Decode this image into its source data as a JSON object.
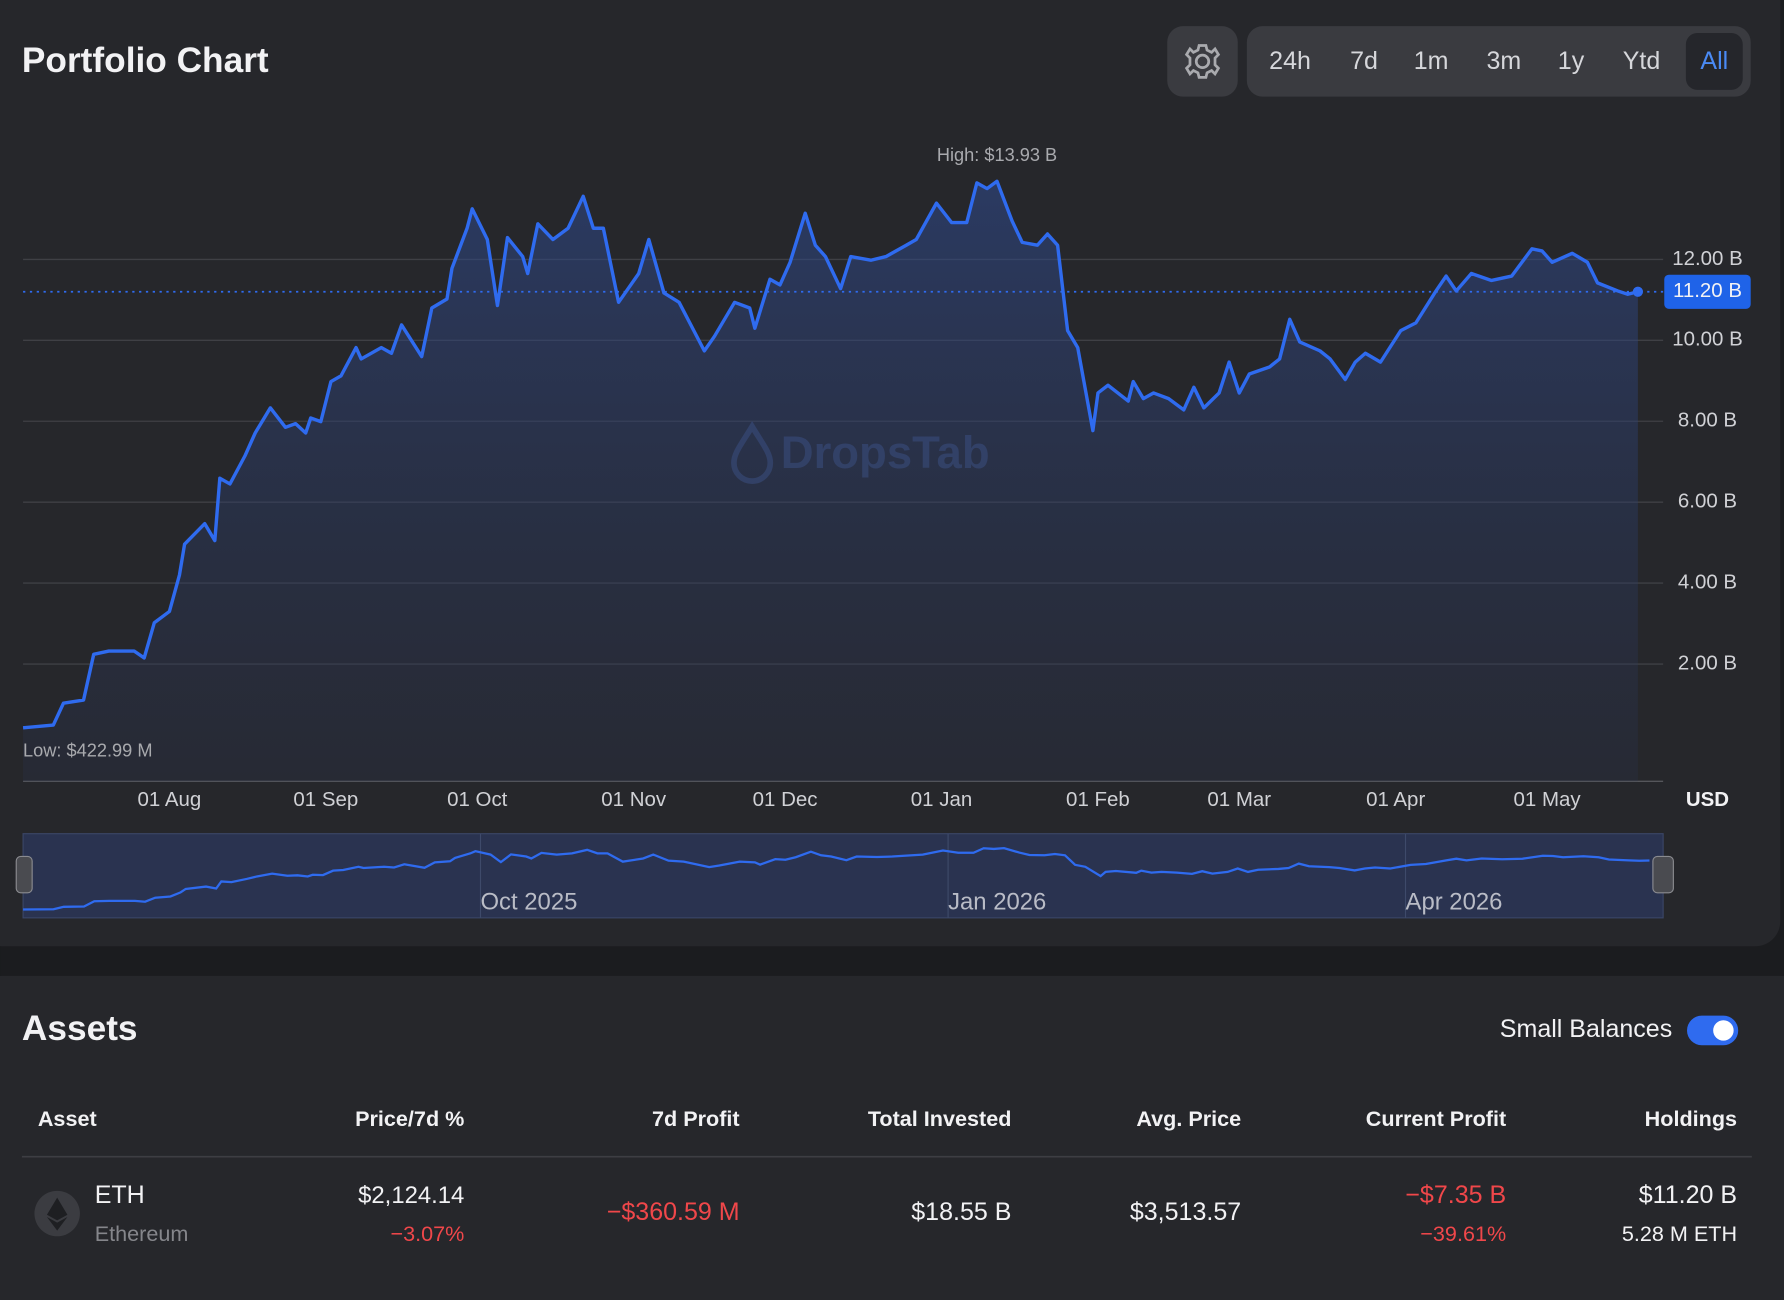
{
  "header": {
    "title": "Portfolio Chart",
    "ranges": [
      "24h",
      "7d",
      "1m",
      "3m",
      "1y",
      "Ytd",
      "All"
    ],
    "active_range": "All"
  },
  "chart_data": {
    "type": "line",
    "color": "#2f6bef",
    "grid": true,
    "watermark": "DropsTab",
    "currency_label": "USD",
    "annotations": [
      {
        "text": "High: $13.93 B",
        "at": "max"
      },
      {
        "text": "Low: $422.99 M",
        "at": "min"
      }
    ],
    "x": [
      "2025-07-03",
      "2025-07-09",
      "2025-07-11",
      "2025-07-15",
      "2025-07-17",
      "2025-07-20",
      "2025-07-25",
      "2025-07-27",
      "2025-07-29",
      "2025-08-01",
      "2025-08-03",
      "2025-08-04",
      "2025-08-08",
      "2025-08-10",
      "2025-08-11",
      "2025-08-13",
      "2025-08-16",
      "2025-08-18",
      "2025-08-21",
      "2025-08-24",
      "2025-08-26",
      "2025-08-28",
      "2025-08-29",
      "2025-08-31",
      "2025-09-02",
      "2025-09-04",
      "2025-09-07",
      "2025-09-08",
      "2025-09-12",
      "2025-09-14",
      "2025-09-16",
      "2025-09-20",
      "2025-09-22",
      "2025-09-25",
      "2025-09-26",
      "2025-09-29",
      "2025-09-30",
      "2025-10-03",
      "2025-10-05",
      "2025-10-07",
      "2025-10-10",
      "2025-10-11",
      "2025-10-13",
      "2025-10-16",
      "2025-10-19",
      "2025-10-22",
      "2025-10-24",
      "2025-10-26",
      "2025-10-29",
      "2025-11-02",
      "2025-11-04",
      "2025-11-07",
      "2025-11-10",
      "2025-11-15",
      "2025-11-17",
      "2025-11-21",
      "2025-11-24",
      "2025-11-25",
      "2025-11-28",
      "2025-11-30",
      "2025-12-02",
      "2025-12-05",
      "2025-12-07",
      "2025-12-09",
      "2025-12-12",
      "2025-12-14",
      "2025-12-18",
      "2025-12-21",
      "2025-12-25",
      "2025-12-27",
      "2025-12-31",
      "2026-01-03",
      "2026-01-06",
      "2026-01-08",
      "2026-01-10",
      "2026-01-12",
      "2026-01-15",
      "2026-01-17",
      "2026-01-20",
      "2026-01-22",
      "2026-01-24",
      "2026-01-26",
      "2026-01-28",
      "2026-01-31",
      "2026-02-01",
      "2026-02-03",
      "2026-02-07",
      "2026-02-08",
      "2026-02-10",
      "2026-02-12",
      "2026-02-15",
      "2026-02-18",
      "2026-02-20",
      "2026-02-22",
      "2026-02-25",
      "2026-02-27",
      "2026-03-01",
      "2026-03-03",
      "2026-03-07",
      "2026-03-09",
      "2026-03-11",
      "2026-03-13",
      "2026-03-17",
      "2026-03-19",
      "2026-03-22",
      "2026-03-24",
      "2026-03-26",
      "2026-03-29",
      "2026-04-02",
      "2026-04-05",
      "2026-04-09",
      "2026-04-11",
      "2026-04-13",
      "2026-04-16",
      "2026-04-20",
      "2026-04-24",
      "2026-04-28",
      "2026-04-30",
      "2026-05-02",
      "2026-05-06",
      "2026-05-09",
      "2026-05-11",
      "2026-05-15",
      "2026-05-17",
      "2026-05-19"
    ],
    "series": [
      {
        "values": [
          0.42299,
          0.49,
          1.03,
          1.11,
          2.24,
          2.32,
          2.32,
          2.15,
          3.02,
          3.3,
          4.2,
          4.96,
          5.47,
          5.05,
          6.59,
          6.45,
          7.15,
          7.71,
          8.33,
          7.85,
          7.94,
          7.71,
          8.08,
          7.99,
          8.98,
          9.12,
          9.82,
          9.54,
          9.82,
          9.68,
          10.38,
          9.6,
          10.8,
          11.02,
          11.78,
          12.77,
          13.25,
          12.49,
          10.86,
          12.54,
          12.07,
          11.65,
          12.88,
          12.49,
          12.77,
          13.56,
          12.77,
          12.77,
          10.94,
          11.65,
          12.49,
          11.17,
          10.94,
          9.74,
          10.1,
          10.94,
          10.8,
          10.3,
          11.51,
          11.37,
          11.93,
          13.14,
          12.35,
          12.07,
          11.28,
          12.07,
          11.98,
          12.07,
          12.35,
          12.49,
          13.39,
          12.91,
          12.91,
          13.89,
          13.75,
          13.93,
          12.95,
          12.42,
          12.35,
          12.63,
          12.35,
          10.24,
          9.82,
          7.77,
          8.7,
          8.89,
          8.5,
          8.98,
          8.56,
          8.7,
          8.56,
          8.28,
          8.84,
          8.33,
          8.7,
          9.46,
          8.7,
          9.17,
          9.34,
          9.54,
          10.52,
          9.96,
          9.74,
          9.54,
          9.03,
          9.46,
          9.68,
          9.46,
          10.24,
          10.43,
          11.22,
          11.59,
          11.22,
          11.65,
          11.48,
          11.59,
          12.26,
          12.21,
          11.93,
          12.15,
          11.93,
          11.42,
          11.22,
          11.14,
          11.2
        ],
        "value_labels": [
          null,
          null,
          null,
          null,
          null,
          null,
          null,
          null,
          null,
          null,
          null,
          null,
          null,
          null,
          null,
          null,
          null,
          null,
          null,
          null,
          null,
          null,
          null,
          null,
          null,
          null,
          null,
          null,
          null,
          null,
          null,
          null,
          null,
          null,
          null,
          null,
          null,
          null,
          null,
          null,
          null,
          null,
          null,
          null,
          null,
          null,
          null,
          null,
          null,
          null,
          null,
          null,
          null,
          null,
          null,
          null,
          null,
          null,
          null,
          null,
          null,
          null,
          null,
          null,
          null,
          null,
          null,
          null,
          null,
          null,
          null,
          null,
          null,
          null,
          null,
          null,
          null,
          null,
          null,
          null,
          null,
          null,
          null,
          null,
          null,
          null,
          null,
          null,
          null,
          null,
          null,
          null,
          null,
          null,
          null,
          null,
          null,
          null,
          null,
          null,
          null,
          null,
          null,
          null,
          null,
          null,
          null,
          null,
          null,
          null,
          null,
          null,
          null,
          null,
          null,
          null,
          null,
          null,
          null,
          null,
          null,
          null,
          null,
          null,
          "11.20 B"
        ]
      }
    ],
    "xlim": [
      "2025-07-03",
      "2026-05-24"
    ],
    "xticks": [
      {
        "value": "2025-08-01",
        "label": "01 Aug"
      },
      {
        "value": "2025-09-01",
        "label": "01 Sep"
      },
      {
        "value": "2025-10-01",
        "label": "01 Oct"
      },
      {
        "value": "2025-11-01",
        "label": "01 Nov"
      },
      {
        "value": "2025-12-01",
        "label": "01 Dec"
      },
      {
        "value": "2026-01-01",
        "label": "01 Jan"
      },
      {
        "value": "2026-02-01",
        "label": "01 Feb"
      },
      {
        "value": "2026-03-01",
        "label": "01 Mar"
      },
      {
        "value": "2026-04-01",
        "label": "01 Apr"
      },
      {
        "value": "2026-05-01",
        "label": "01 May"
      }
    ],
    "ylim": [
      -0.9,
      15.6
    ],
    "yticks": [
      {
        "value": 2,
        "label": "2.00 B"
      },
      {
        "value": 4,
        "label": "4.00 B"
      },
      {
        "value": 6,
        "label": "6.00 B"
      },
      {
        "value": 8,
        "label": "8.00 B"
      },
      {
        "value": 10,
        "label": "10.00 B"
      },
      {
        "value": 12,
        "label": "12.00 B"
      }
    ],
    "navigator_ticks": [
      {
        "value": "2025-10-01",
        "label": "Oct 2025"
      },
      {
        "value": "2026-01-01",
        "label": "Jan 2026"
      },
      {
        "value": "2026-04-01",
        "label": "Apr 2026"
      }
    ]
  },
  "assets": {
    "title": "Assets",
    "small_balances_label": "Small Balances",
    "small_balances_on": true,
    "columns": [
      "Asset",
      "Price/7d %",
      "7d Profit",
      "Total Invested",
      "Avg. Price",
      "Current Profit",
      "Holdings"
    ],
    "rows": [
      {
        "symbol": "ETH",
        "name": "Ethereum",
        "price": "$2,124.14",
        "change_7d": "−3.07%",
        "profit_7d": "−$360.59 M",
        "total_invested": "$18.55 B",
        "avg_price": "$3,513.57",
        "current_profit": "−$7.35 B",
        "current_profit_pct": "−39.61%",
        "holdings": "$11.20 B",
        "holdings_amount": "5.28 M ETH"
      }
    ]
  }
}
